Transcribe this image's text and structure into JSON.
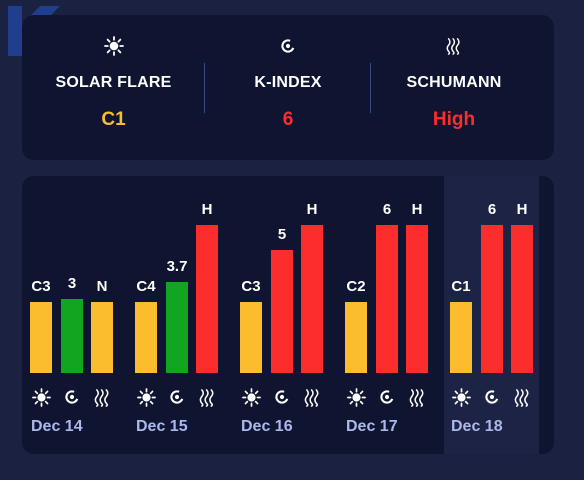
{
  "colors": {
    "solar": "#fbbc2e",
    "kindex_low": "#12a51f",
    "high": "#fb2d2d",
    "date_text": "#aab8ec",
    "logo": "#1f3f8e"
  },
  "summary": {
    "solar": {
      "icon": "sun-icon",
      "label": "SOLAR FLARE",
      "value": "C1",
      "color": "#fbbc2e"
    },
    "kindex": {
      "icon": "magnet-icon",
      "label": "K-INDEX",
      "value": "6",
      "color": "#fb2d2d"
    },
    "schumann": {
      "icon": "waves-icon",
      "label": "SCHUMANN",
      "value": "High",
      "color": "#fb2d2d"
    }
  },
  "chart_data": {
    "type": "bar",
    "categories": [
      "Dec 14",
      "Dec 15",
      "Dec 16",
      "Dec 17",
      "Dec 18"
    ],
    "series": [
      {
        "key": "solar",
        "labels": [
          "C3",
          "C4",
          "C3",
          "C2",
          "C1"
        ],
        "levels": [
          0.48,
          0.48,
          0.48,
          0.48,
          0.48
        ]
      },
      {
        "key": "kindex",
        "labels": [
          "3",
          "3.7",
          "5",
          "6",
          "6"
        ],
        "values": [
          3,
          3.7,
          5,
          6,
          6
        ]
      },
      {
        "key": "schumann",
        "labels": [
          "N",
          "H",
          "H",
          "H",
          "H"
        ],
        "levels": [
          0.48,
          1,
          1,
          1,
          1
        ]
      }
    ],
    "highlighted": "Dec 18"
  }
}
